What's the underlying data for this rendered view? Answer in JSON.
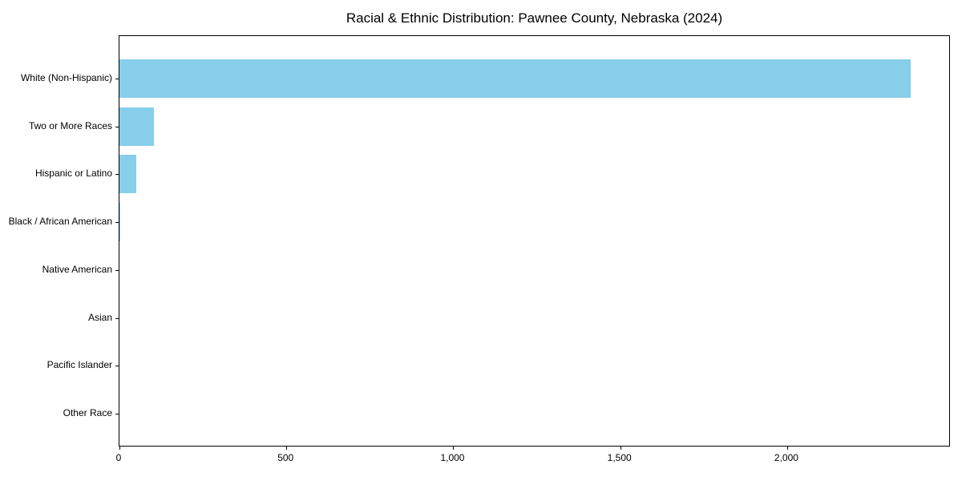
{
  "chart_data": {
    "type": "bar",
    "orientation": "horizontal",
    "title": "Racial & Ethnic Distribution: Pawnee County, Nebraska (2024)",
    "categories": [
      "White (Non-Hispanic)",
      "Two or More Races",
      "Hispanic or Latino",
      "Black / African American",
      "Native American",
      "Asian",
      "Pacific Islander",
      "Other Race"
    ],
    "values": [
      2370,
      103,
      50,
      3,
      0,
      0,
      0,
      0
    ],
    "xlabel": "",
    "ylabel": "",
    "xlim": [
      0,
      2490
    ],
    "x_ticks": [
      0,
      500,
      1000,
      1500,
      2000
    ],
    "x_tick_labels": [
      "0",
      "500",
      "1,000",
      "1,500",
      "2,000"
    ],
    "bar_color": "#87CEEB",
    "background_color": "#FFFFFF",
    "text_color": "#000000",
    "grid": false,
    "legend": null
  }
}
